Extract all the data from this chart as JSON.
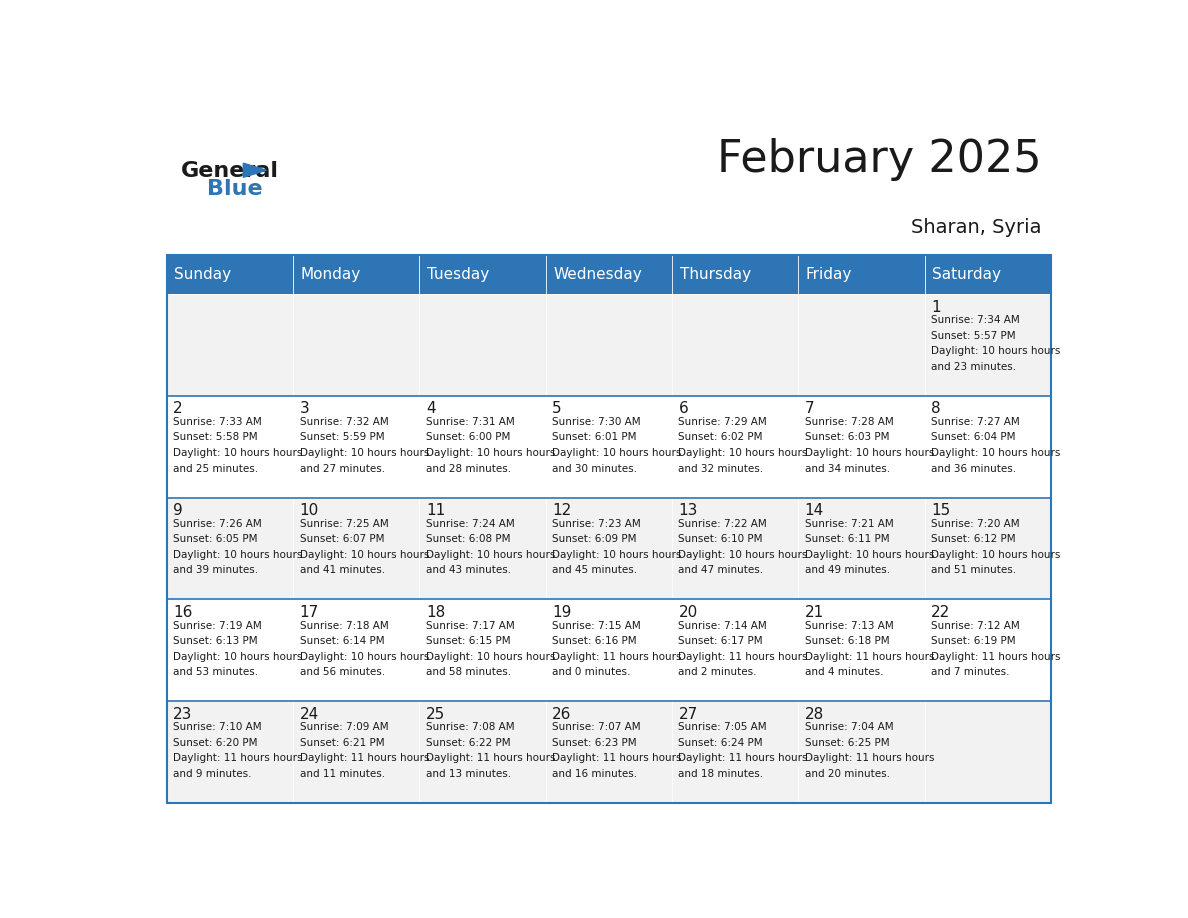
{
  "title": "February 2025",
  "subtitle": "Sharan, Syria",
  "header_color": "#2E75B6",
  "header_text_color": "#FFFFFF",
  "background_color": "#FFFFFF",
  "alt_row_color": "#F2F2F2",
  "border_color": "#2E75B6",
  "day_headers": [
    "Sunday",
    "Monday",
    "Tuesday",
    "Wednesday",
    "Thursday",
    "Friday",
    "Saturday"
  ],
  "days": [
    {
      "day": 1,
      "col": 6,
      "row": 0,
      "sunrise": "7:34 AM",
      "sunset": "5:57 PM",
      "daylight": "10 hours and 23 minutes."
    },
    {
      "day": 2,
      "col": 0,
      "row": 1,
      "sunrise": "7:33 AM",
      "sunset": "5:58 PM",
      "daylight": "10 hours and 25 minutes."
    },
    {
      "day": 3,
      "col": 1,
      "row": 1,
      "sunrise": "7:32 AM",
      "sunset": "5:59 PM",
      "daylight": "10 hours and 27 minutes."
    },
    {
      "day": 4,
      "col": 2,
      "row": 1,
      "sunrise": "7:31 AM",
      "sunset": "6:00 PM",
      "daylight": "10 hours and 28 minutes."
    },
    {
      "day": 5,
      "col": 3,
      "row": 1,
      "sunrise": "7:30 AM",
      "sunset": "6:01 PM",
      "daylight": "10 hours and 30 minutes."
    },
    {
      "day": 6,
      "col": 4,
      "row": 1,
      "sunrise": "7:29 AM",
      "sunset": "6:02 PM",
      "daylight": "10 hours and 32 minutes."
    },
    {
      "day": 7,
      "col": 5,
      "row": 1,
      "sunrise": "7:28 AM",
      "sunset": "6:03 PM",
      "daylight": "10 hours and 34 minutes."
    },
    {
      "day": 8,
      "col": 6,
      "row": 1,
      "sunrise": "7:27 AM",
      "sunset": "6:04 PM",
      "daylight": "10 hours and 36 minutes."
    },
    {
      "day": 9,
      "col": 0,
      "row": 2,
      "sunrise": "7:26 AM",
      "sunset": "6:05 PM",
      "daylight": "10 hours and 39 minutes."
    },
    {
      "day": 10,
      "col": 1,
      "row": 2,
      "sunrise": "7:25 AM",
      "sunset": "6:07 PM",
      "daylight": "10 hours and 41 minutes."
    },
    {
      "day": 11,
      "col": 2,
      "row": 2,
      "sunrise": "7:24 AM",
      "sunset": "6:08 PM",
      "daylight": "10 hours and 43 minutes."
    },
    {
      "day": 12,
      "col": 3,
      "row": 2,
      "sunrise": "7:23 AM",
      "sunset": "6:09 PM",
      "daylight": "10 hours and 45 minutes."
    },
    {
      "day": 13,
      "col": 4,
      "row": 2,
      "sunrise": "7:22 AM",
      "sunset": "6:10 PM",
      "daylight": "10 hours and 47 minutes."
    },
    {
      "day": 14,
      "col": 5,
      "row": 2,
      "sunrise": "7:21 AM",
      "sunset": "6:11 PM",
      "daylight": "10 hours and 49 minutes."
    },
    {
      "day": 15,
      "col": 6,
      "row": 2,
      "sunrise": "7:20 AM",
      "sunset": "6:12 PM",
      "daylight": "10 hours and 51 minutes."
    },
    {
      "day": 16,
      "col": 0,
      "row": 3,
      "sunrise": "7:19 AM",
      "sunset": "6:13 PM",
      "daylight": "10 hours and 53 minutes."
    },
    {
      "day": 17,
      "col": 1,
      "row": 3,
      "sunrise": "7:18 AM",
      "sunset": "6:14 PM",
      "daylight": "10 hours and 56 minutes."
    },
    {
      "day": 18,
      "col": 2,
      "row": 3,
      "sunrise": "7:17 AM",
      "sunset": "6:15 PM",
      "daylight": "10 hours and 58 minutes."
    },
    {
      "day": 19,
      "col": 3,
      "row": 3,
      "sunrise": "7:15 AM",
      "sunset": "6:16 PM",
      "daylight": "11 hours and 0 minutes."
    },
    {
      "day": 20,
      "col": 4,
      "row": 3,
      "sunrise": "7:14 AM",
      "sunset": "6:17 PM",
      "daylight": "11 hours and 2 minutes."
    },
    {
      "day": 21,
      "col": 5,
      "row": 3,
      "sunrise": "7:13 AM",
      "sunset": "6:18 PM",
      "daylight": "11 hours and 4 minutes."
    },
    {
      "day": 22,
      "col": 6,
      "row": 3,
      "sunrise": "7:12 AM",
      "sunset": "6:19 PM",
      "daylight": "11 hours and 7 minutes."
    },
    {
      "day": 23,
      "col": 0,
      "row": 4,
      "sunrise": "7:10 AM",
      "sunset": "6:20 PM",
      "daylight": "11 hours and 9 minutes."
    },
    {
      "day": 24,
      "col": 1,
      "row": 4,
      "sunrise": "7:09 AM",
      "sunset": "6:21 PM",
      "daylight": "11 hours and 11 minutes."
    },
    {
      "day": 25,
      "col": 2,
      "row": 4,
      "sunrise": "7:08 AM",
      "sunset": "6:22 PM",
      "daylight": "11 hours and 13 minutes."
    },
    {
      "day": 26,
      "col": 3,
      "row": 4,
      "sunrise": "7:07 AM",
      "sunset": "6:23 PM",
      "daylight": "11 hours and 16 minutes."
    },
    {
      "day": 27,
      "col": 4,
      "row": 4,
      "sunrise": "7:05 AM",
      "sunset": "6:24 PM",
      "daylight": "11 hours and 18 minutes."
    },
    {
      "day": 28,
      "col": 5,
      "row": 4,
      "sunrise": "7:04 AM",
      "sunset": "6:25 PM",
      "daylight": "11 hours and 20 minutes."
    }
  ],
  "num_rows": 5,
  "num_cols": 7
}
